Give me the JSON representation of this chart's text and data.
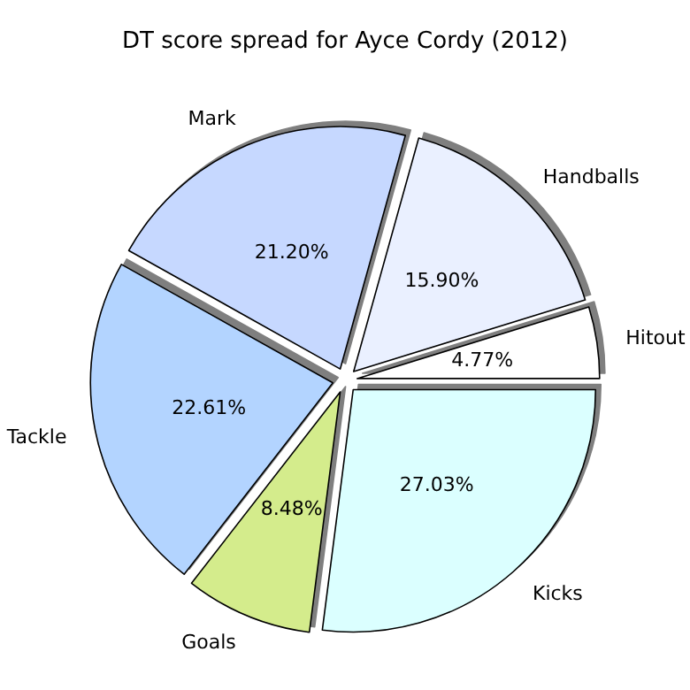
{
  "chart_data": {
    "type": "pie",
    "title": "DT score spread for Ayce Cordy (2012)",
    "categories": [
      "Hitout",
      "Handballs",
      "Mark",
      "Tackle",
      "Goals",
      "Kicks"
    ],
    "values": [
      4.77,
      15.9,
      21.2,
      22.61,
      8.48,
      27.03
    ],
    "value_labels": [
      "4.77%",
      "15.90%",
      "21.20%",
      "22.61%",
      "8.48%",
      "27.03%"
    ],
    "colors": [
      "#ffffff",
      "#eaf0ff",
      "#c6d8ff",
      "#b3d4ff",
      "#d4ec8c",
      "#dbffff"
    ]
  }
}
